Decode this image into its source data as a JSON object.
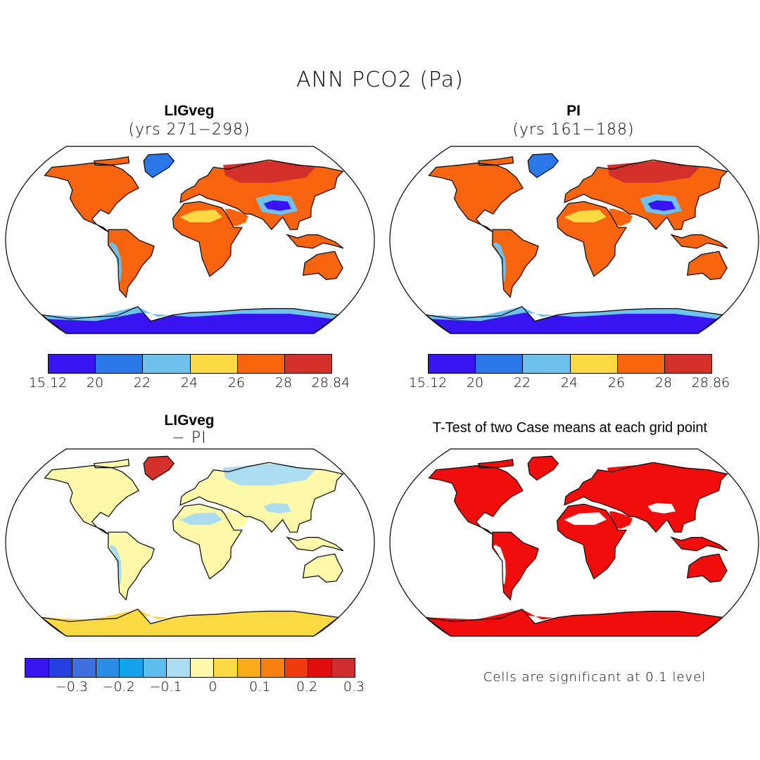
{
  "figure": {
    "title": "ANN PCO2 (Pa)"
  },
  "panels": {
    "ligveg": {
      "title": "LIGveg",
      "subtitle": "(yrs 271−298)"
    },
    "pi": {
      "title": "PI",
      "subtitle": "(yrs 161−188)"
    },
    "diff": {
      "title": "LIGveg",
      "subtitle": "− PI"
    },
    "ttest": {
      "title": "T-Test of two Case means at each grid point",
      "note": "Cells are significant at 0.1 level"
    }
  },
  "colorbars": {
    "ligveg": {
      "colors": [
        "#3a14f0",
        "#2a78e8",
        "#6ec3ee",
        "#fbd943",
        "#f8640e",
        "#d3302c"
      ],
      "labels": [
        "15.12",
        "20",
        "22",
        "24",
        "26",
        "28",
        "28.84"
      ]
    },
    "pi": {
      "colors": [
        "#3a14f0",
        "#2a78e8",
        "#6ec3ee",
        "#fbd943",
        "#f8640e",
        "#d3302c"
      ],
      "labels": [
        "15.12",
        "20",
        "22",
        "24",
        "26",
        "28",
        "28.86"
      ]
    },
    "diff": {
      "colors": [
        "#3a14f0",
        "#2440e0",
        "#3d6fe0",
        "#2a8ee8",
        "#12a2ee",
        "#5dbdee",
        "#abdcef",
        "#fdf9a8",
        "#fbd943",
        "#f9ab1a",
        "#f8800e",
        "#f13a0e",
        "#e10d0d",
        "#cf2f2f"
      ],
      "labels": [
        "−0.3",
        "−0.2",
        "−0.1",
        "0",
        "0.1",
        "0.2",
        "0.3"
      ]
    }
  },
  "map_fills": {
    "ligveg": {
      "ocean": "#ffffff",
      "land": "#f8640e",
      "north_land": "#d3302c",
      "tibet": "#3a14f0",
      "tibet_ring": "#6ec3ee",
      "desert": "#fbd943",
      "antarctica": "#3a14f0",
      "antarctica_edge": "#6ec3ee",
      "greenland": "#2a78e8",
      "andes": "#6ec3ee"
    },
    "pi": {
      "ocean": "#ffffff",
      "land": "#f8640e",
      "north_land": "#d3302c",
      "tibet": "#3a14f0",
      "tibet_ring": "#6ec3ee",
      "desert": "#fbd943",
      "antarctica": "#3a14f0",
      "antarctica_edge": "#6ec3ee",
      "greenland": "#2a78e8",
      "andes": "#6ec3ee"
    },
    "diff": {
      "ocean": "#ffffff",
      "land": "#fdf9a8",
      "north_land": "#abdcef",
      "tibet": "#abdcef",
      "tibet_ring": "#fdf9a8",
      "desert": "#abdcef",
      "antarctica": "#fbd943",
      "antarctica_edge": "#fbd943",
      "greenland": "#d3302c",
      "andes": "#abdcef"
    },
    "ttest": {
      "ocean": "#ffffff",
      "land": "#f20d0d",
      "north_land": "#f20d0d",
      "tibet": "#ffffff",
      "tibet_ring": "#f20d0d",
      "desert": "#ffffff",
      "antarctica": "#f20d0d",
      "antarctica_edge": "#f20d0d",
      "greenland": "#f20d0d",
      "andes": "#ffffff"
    }
  }
}
